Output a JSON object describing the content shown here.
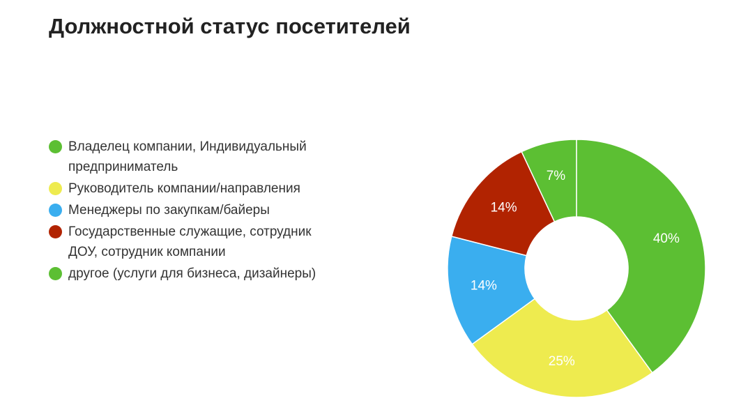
{
  "chart_data": {
    "type": "donut",
    "title": "Должностной статус посетителей",
    "categories": [
      "Владелец компании, Индивидуальный предприниматель",
      "Руководитель компании/направления",
      "Менеджеры по закупкам/байеры",
      "Государственные служащие, сотрудник ДОУ, сотрудник компании",
      "другое (услуги для бизнеса, дизайнеры)"
    ],
    "values": [
      40,
      25,
      14,
      14,
      7
    ],
    "value_labels": [
      "40%",
      "25%",
      "14%",
      "14%",
      "7%"
    ],
    "colors": [
      "#5cbf33",
      "#eeeb4f",
      "#3aaeef",
      "#b12301",
      "#5cbf33"
    ],
    "legend": "left"
  }
}
